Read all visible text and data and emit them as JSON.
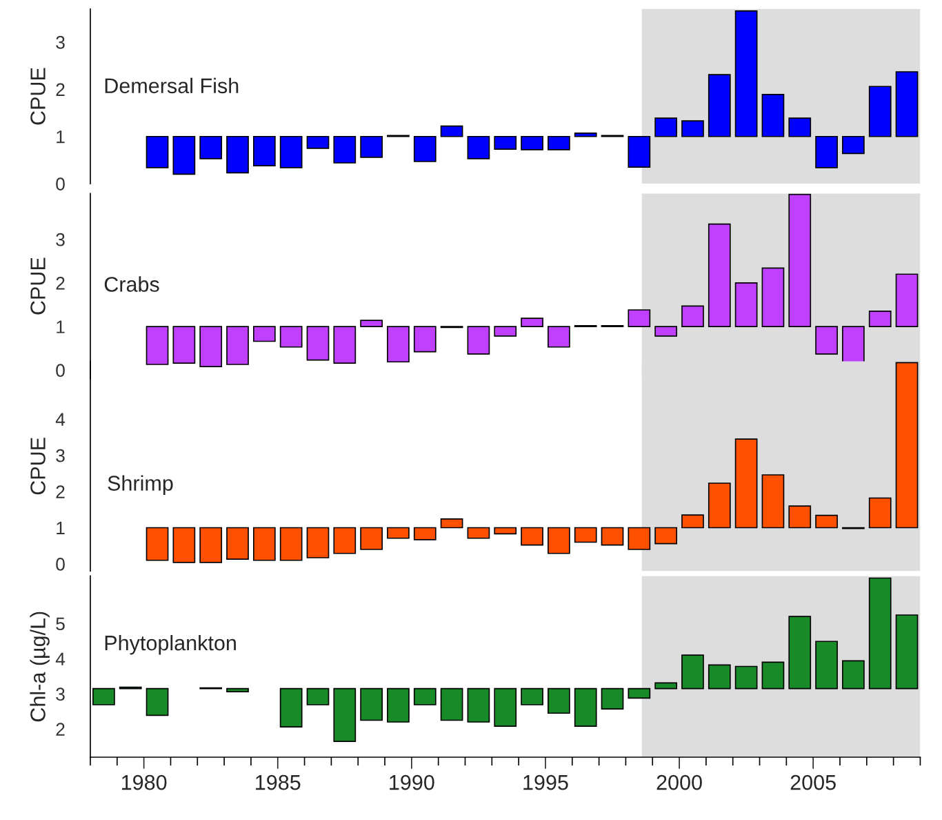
{
  "chart_data": [
    {
      "type": "bar",
      "ylabel": "CPUE",
      "annotations": [
        "Demersal Fish"
      ],
      "color": "#0000ff",
      "tick_labels": "y",
      "x": [
        1980.5,
        1981.5,
        1982.5,
        1983.5,
        1984.5,
        1985.5,
        1986.5,
        1987.5,
        1988.5,
        1989.5,
        1990.5,
        1991.5,
        1992.5,
        1993.5,
        1994.5,
        1995.5,
        1996.5,
        1997.5,
        1998.5,
        1999.5,
        2000.5,
        2001.5,
        2002.5,
        2003.5,
        2004.5,
        2005.5,
        2006.5,
        2007.5,
        2008.5
      ],
      "base": [
        1,
        1,
        1,
        1,
        1,
        1,
        1,
        1,
        1,
        1,
        1,
        1,
        1,
        1,
        1,
        1,
        1,
        1,
        1,
        1,
        1,
        1,
        1,
        1,
        1,
        1,
        1,
        1,
        1
      ],
      "values": [
        -0.66,
        -0.8,
        -0.47,
        -0.77,
        -0.62,
        -0.66,
        -0.25,
        -0.56,
        -0.44,
        0.02,
        -0.53,
        0.22,
        -0.47,
        -0.27,
        -0.28,
        -0.28,
        0.07,
        0.02,
        -0.65,
        0.39,
        0.33,
        1.31,
        2.66,
        0.89,
        0.39,
        -0.66,
        -0.36,
        1.06,
        1.37
      ],
      "xlim": [
        1978,
        2009
      ],
      "ylim": [
        0,
        3.7
      ],
      "yticks": [
        0,
        1,
        2,
        3
      ],
      "bands": [
        {
          "axis": "x",
          "from": 1998.6,
          "to": 2009,
          "color": "#dddddd"
        }
      ]
    },
    {
      "type": "bar",
      "ylabel": "CPUE",
      "annotations": [
        "Crabs"
      ],
      "color": "#bf40ff",
      "tick_labels": "y",
      "x": [
        1980.5,
        1981.5,
        1982.5,
        1983.5,
        1984.5,
        1985.5,
        1986.5,
        1987.5,
        1988.5,
        1989.5,
        1990.5,
        1991.5,
        1992.5,
        1993.5,
        1994.5,
        1995.5,
        1996.5,
        1997.5,
        1998.5,
        1999.5,
        2000.5,
        2001.5,
        2002.5,
        2003.5,
        2004.5,
        2005.5,
        2006.5,
        2007.5,
        2008.5
      ],
      "base": [
        1,
        1,
        1,
        1,
        1,
        1,
        1,
        1,
        1,
        1,
        1,
        1,
        1,
        1,
        1,
        1,
        1,
        1,
        1,
        1,
        1,
        1,
        1,
        1,
        1,
        1,
        1,
        1,
        1
      ],
      "values": [
        -0.87,
        -0.84,
        -0.92,
        -0.87,
        -0.34,
        -0.47,
        -0.77,
        -0.84,
        0.14,
        -0.81,
        -0.58,
        -0.02,
        -0.63,
        -0.22,
        0.19,
        -0.47,
        0.02,
        0.02,
        0.38,
        -0.22,
        0.47,
        2.35,
        1.0,
        1.34,
        3.03,
        -0.63,
        -0.83,
        0.35,
        1.2
      ],
      "xlim": [
        1978,
        2009
      ],
      "ylim": [
        -0.2,
        4.05
      ],
      "yticks": [
        0,
        1,
        2,
        3
      ],
      "bands": [
        {
          "axis": "x",
          "from": 1998.6,
          "to": 2009,
          "color": "#dddddd"
        }
      ]
    },
    {
      "type": "bar",
      "ylabel": "CPUE",
      "annotations": [
        "Shrimp"
      ],
      "color": "#ff5000",
      "tick_labels": "y",
      "x": [
        1980.5,
        1981.5,
        1982.5,
        1983.5,
        1984.5,
        1985.5,
        1986.5,
        1987.5,
        1988.5,
        1989.5,
        1990.5,
        1991.5,
        1992.5,
        1993.5,
        1994.5,
        1995.5,
        1996.5,
        1997.5,
        1998.5,
        1999.5,
        2000.5,
        2001.5,
        2002.5,
        2003.5,
        2004.5,
        2005.5,
        2006.5,
        2007.5,
        2008.5
      ],
      "base": [
        1,
        1,
        1,
        1,
        1,
        1,
        1,
        1,
        1,
        1,
        1,
        1,
        1,
        1,
        1,
        1,
        1,
        1,
        1,
        1,
        1,
        1,
        1,
        1,
        1,
        1,
        1,
        1,
        1
      ],
      "values": [
        -0.9,
        -0.96,
        -0.96,
        -0.87,
        -0.9,
        -0.9,
        -0.83,
        -0.71,
        -0.6,
        -0.29,
        -0.33,
        0.24,
        -0.29,
        -0.17,
        -0.48,
        -0.71,
        -0.4,
        -0.48,
        -0.6,
        -0.44,
        0.35,
        1.23,
        2.45,
        1.46,
        0.6,
        0.34,
        -0.02,
        0.82,
        4.56
      ],
      "xlim": [
        1978,
        2009
      ],
      "ylim": [
        -0.2,
        5.6
      ],
      "yticks": [
        0,
        1,
        2,
        3,
        4
      ],
      "bands": [
        {
          "axis": "x",
          "from": 1998.6,
          "to": 2009,
          "color": "#dddddd"
        }
      ]
    },
    {
      "type": "bar",
      "ylabel": "Chl-a (µg/L)",
      "annotations": [
        "Phytoplankton"
      ],
      "color": "#188a28",
      "x": [
        1978.5,
        1979.5,
        1980.5,
        1981.5,
        1982.5,
        1983.5,
        1984.5,
        1985.5,
        1986.5,
        1987.5,
        1988.5,
        1989.5,
        1990.5,
        1991.5,
        1992.5,
        1993.5,
        1994.5,
        1995.5,
        1996.5,
        1997.5,
        1998.5,
        1999.5,
        2000.5,
        2001.5,
        2002.5,
        2003.5,
        2004.5,
        2005.5,
        2006.5,
        2007.5,
        2008.5
      ],
      "base": [
        3.15,
        3.15,
        3.15,
        null,
        3.15,
        3.15,
        null,
        3.15,
        3.15,
        3.15,
        3.15,
        3.15,
        3.15,
        3.15,
        3.15,
        3.15,
        3.15,
        3.15,
        3.15,
        3.15,
        3.15,
        3.15,
        3.15,
        3.15,
        3.15,
        3.15,
        3.15,
        3.15,
        3.15,
        3.15,
        3.15
      ],
      "values": [
        -0.46,
        0.04,
        -0.76,
        null,
        0.02,
        -0.09,
        null,
        -1.09,
        -0.46,
        -1.5,
        -0.9,
        -0.95,
        -0.46,
        -0.9,
        -0.95,
        -1.07,
        -0.46,
        -0.7,
        -1.07,
        -0.58,
        -0.27,
        0.16,
        0.95,
        0.67,
        0.63,
        0.75,
        2.05,
        1.34,
        0.79,
        3.14,
        2.09
      ],
      "xlim": [
        1978,
        2009
      ],
      "ylim": [
        1.2,
        6.35
      ],
      "yticks": [
        2,
        3,
        4,
        5
      ],
      "xticks": [
        {
          "value": 1978,
          "label": null
        },
        {
          "value": 1979,
          "label": null
        },
        1980,
        {
          "value": 1981,
          "label": null
        },
        {
          "value": 1982,
          "label": null
        },
        {
          "value": 1983,
          "label": null
        },
        {
          "value": 1984,
          "label": null
        },
        1985,
        {
          "value": 1986,
          "label": null
        },
        {
          "value": 1987,
          "label": null
        },
        {
          "value": 1988,
          "label": null
        },
        {
          "value": 1989,
          "label": null
        },
        1990,
        {
          "value": 1991,
          "label": null
        },
        {
          "value": 1992,
          "label": null
        },
        {
          "value": 1993,
          "label": null
        },
        {
          "value": 1994,
          "label": null
        },
        1995,
        {
          "value": 1996,
          "label": null
        },
        {
          "value": 1997,
          "label": null
        },
        {
          "value": 1998,
          "label": null
        },
        {
          "value": 1999,
          "label": null
        },
        2000,
        {
          "value": 2001,
          "label": null
        },
        {
          "value": 2002,
          "label": null
        },
        {
          "value": 2003,
          "label": null
        },
        {
          "value": 2004,
          "label": null
        },
        2005,
        {
          "value": 2006,
          "label": null
        },
        {
          "value": 2007,
          "label": null
        },
        {
          "value": 2008,
          "label": null
        },
        {
          "value": 2009,
          "label": null
        }
      ],
      "bands": [
        {
          "axis": "x",
          "from": 1998.6,
          "to": 2009,
          "color": "#dddddd"
        }
      ]
    }
  ]
}
